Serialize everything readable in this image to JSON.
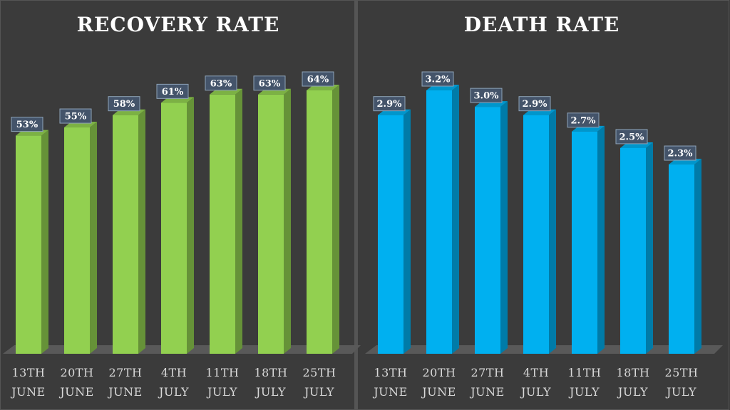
{
  "chart_data": [
    {
      "type": "bar",
      "title": "RECOVERY RATE",
      "categories": [
        "13TH JUNE",
        "20TH JUNE",
        "27TH JUNE",
        "4TH JULY",
        "11TH JULY",
        "18TH JULY",
        "25TH JULY"
      ],
      "values": [
        53,
        55,
        58,
        61,
        63,
        63,
        64
      ],
      "value_labels": [
        "53%",
        "55%",
        "58%",
        "61%",
        "63%",
        "63%",
        "64%"
      ],
      "color": "#92d050"
    },
    {
      "type": "bar",
      "title": "DEATH RATE",
      "categories": [
        "13TH JUNE",
        "20TH JUNE",
        "27TH JUNE",
        "4TH JULY",
        "11TH JULY",
        "18TH JULY",
        "25TH JULY"
      ],
      "values": [
        2.9,
        3.2,
        3.0,
        2.9,
        2.7,
        2.5,
        2.3
      ],
      "value_labels": [
        "2.9%",
        "3.2%",
        "3.0%",
        "2.9%",
        "2.7%",
        "2.5%",
        "2.3%"
      ],
      "color": "#00b0f0"
    }
  ]
}
